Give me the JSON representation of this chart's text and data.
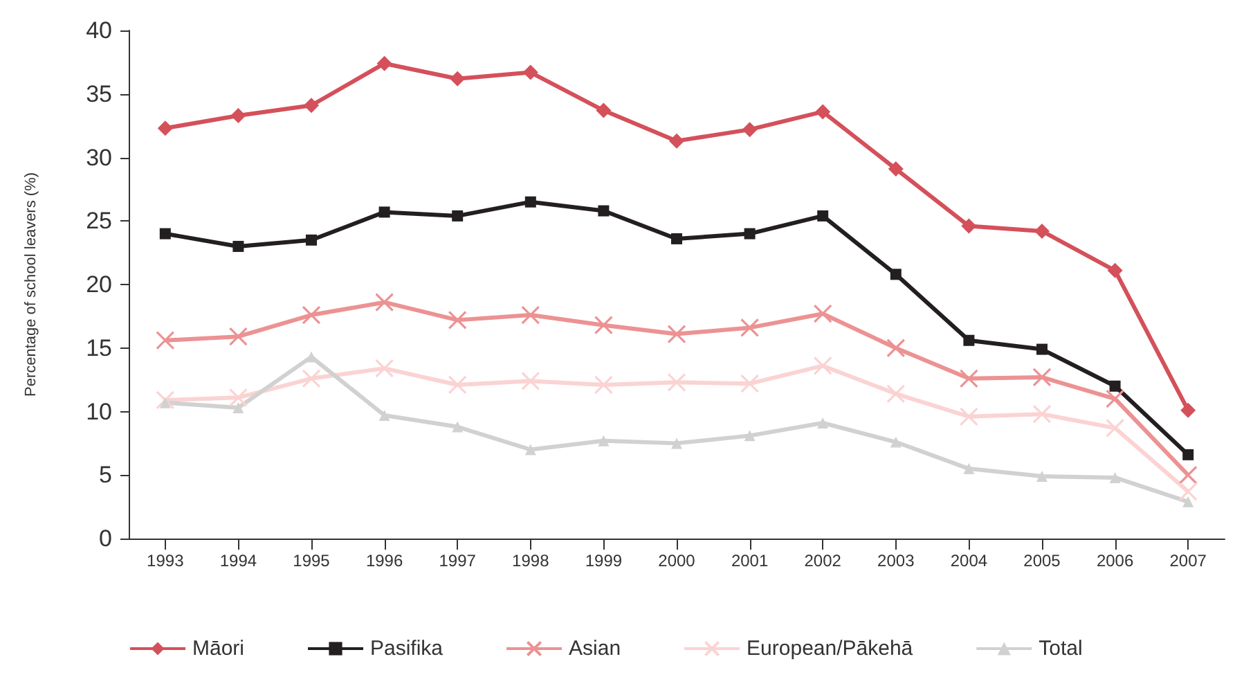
{
  "chart_data": {
    "type": "line",
    "ylabel": "Percentage of school leavers (%)",
    "categories": [
      "1993",
      "1994",
      "1995",
      "1996",
      "1997",
      "1998",
      "1999",
      "2000",
      "2001",
      "2002",
      "2003",
      "2004",
      "2005",
      "2006",
      "2007"
    ],
    "ylim": [
      0,
      40
    ],
    "yticks": [
      0,
      5,
      10,
      15,
      20,
      25,
      30,
      35,
      40
    ],
    "grid": false,
    "legend": "bottom left",
    "series": [
      {
        "name": "Māori",
        "color": "#d4505a",
        "marker": "diamond",
        "values": [
          32.3,
          33.3,
          34.1,
          37.4,
          36.2,
          36.7,
          33.7,
          31.3,
          32.2,
          33.6,
          29.1,
          24.6,
          24.2,
          21.1,
          10.1
        ]
      },
      {
        "name": "Pasifika",
        "color": "#231f20",
        "marker": "square",
        "values": [
          24.0,
          23.0,
          23.5,
          25.7,
          25.4,
          26.5,
          25.8,
          23.6,
          24.0,
          25.4,
          20.8,
          15.6,
          14.9,
          12.0,
          6.6
        ]
      },
      {
        "name": "Asian",
        "color": "#ec9293",
        "marker": "cross",
        "values": [
          15.6,
          15.9,
          17.6,
          18.6,
          17.2,
          17.6,
          16.8,
          16.1,
          16.6,
          17.7,
          15.0,
          12.6,
          12.7,
          11.0,
          5.0
        ]
      },
      {
        "name": "European/Pākehā",
        "color": "#fbd3d3",
        "marker": "cross",
        "values": [
          10.9,
          11.1,
          12.6,
          13.4,
          12.1,
          12.4,
          12.1,
          12.3,
          12.2,
          13.6,
          11.4,
          9.6,
          9.8,
          8.7,
          3.7
        ]
      },
      {
        "name": "Total",
        "color": "#d1d1d1",
        "marker": "triangle",
        "values": [
          10.7,
          10.3,
          14.3,
          9.7,
          8.8,
          7.0,
          7.7,
          7.5,
          8.1,
          9.1,
          7.6,
          5.5,
          4.9,
          4.8,
          2.9
        ]
      }
    ]
  }
}
